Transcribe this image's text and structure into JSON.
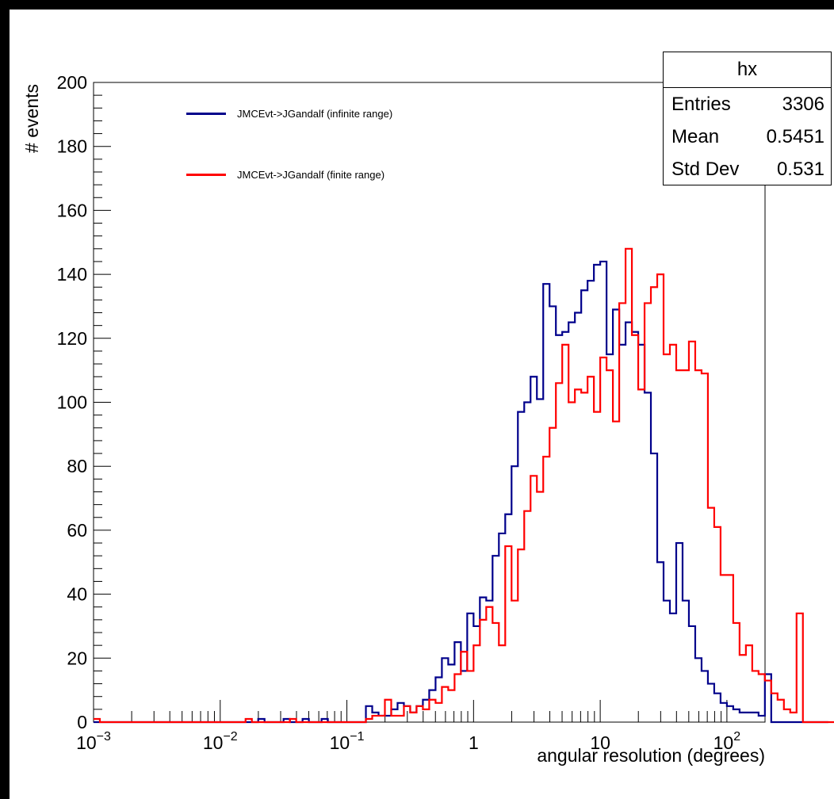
{
  "chart_data": {
    "type": "histogram",
    "xlabel": "angular resolution (degrees)",
    "ylabel": "# events",
    "xscale": "log",
    "xlim": [
      0.001,
      200
    ],
    "ylim": [
      0,
      200
    ],
    "yticks": [
      0,
      20,
      40,
      60,
      80,
      100,
      120,
      140,
      160,
      180,
      200
    ],
    "xtick_labels": [
      {
        "base": "10",
        "exp": "−3",
        "value": 0.001
      },
      {
        "base": "10",
        "exp": "−2",
        "value": 0.01
      },
      {
        "base": "10",
        "exp": "−1",
        "value": 0.1
      },
      {
        "base": "1",
        "exp": "",
        "value": 1
      },
      {
        "base": "10",
        "exp": "",
        "value": 10
      },
      {
        "base": "10",
        "exp": "2",
        "value": 100
      }
    ],
    "bin_log10_start": -3.0,
    "bin_log10_width": 0.05,
    "series": [
      {
        "name": "JMCEvt->JGandalf (infinite range)",
        "color": "#00008b",
        "counts": [
          0,
          0,
          0,
          0,
          0,
          0,
          0,
          0,
          0,
          0,
          0,
          0,
          0,
          0,
          0,
          0,
          0,
          0,
          0,
          0,
          0,
          0,
          0,
          0,
          0,
          0,
          1,
          0,
          0,
          0,
          1,
          0,
          0,
          1,
          0,
          0,
          1,
          0,
          0,
          0,
          0,
          0,
          0,
          5,
          3,
          2,
          2,
          4,
          6,
          5,
          3,
          5,
          7,
          10,
          14,
          20,
          18,
          25,
          16,
          34,
          30,
          39,
          38,
          52,
          59,
          65,
          80,
          97,
          100,
          108,
          101,
          137,
          130,
          121,
          122,
          125,
          128,
          135,
          138,
          143,
          144,
          115,
          129,
          118,
          125,
          122,
          118,
          103,
          84,
          50,
          38,
          34,
          56,
          38,
          30,
          20,
          16,
          12,
          9,
          6,
          5,
          4,
          3,
          3,
          3,
          2,
          15,
          0,
          0,
          0,
          0,
          0,
          0,
          0,
          0,
          0
        ],
        "legend": "JMCEvt->JGandalf (infinite range)"
      },
      {
        "name": "JMCEvt->JGandalf (finite range)",
        "color": "#ff0000",
        "counts": [
          1,
          0,
          0,
          0,
          0,
          0,
          0,
          0,
          0,
          0,
          0,
          0,
          0,
          0,
          0,
          0,
          0,
          0,
          0,
          0,
          0,
          0,
          0,
          0,
          1,
          0,
          0,
          0,
          0,
          0,
          0,
          1,
          0,
          0,
          0,
          0,
          0,
          0,
          0,
          0,
          0,
          0,
          0,
          1,
          2,
          2,
          7,
          2,
          2,
          5,
          3,
          5,
          4,
          7,
          6,
          11,
          10,
          15,
          22,
          16,
          24,
          32,
          36,
          31,
          24,
          55,
          38,
          54,
          66,
          77,
          72,
          83,
          92,
          106,
          118,
          100,
          104,
          103,
          108,
          97,
          114,
          110,
          94,
          131,
          148,
          121,
          104,
          131,
          136,
          140,
          115,
          118,
          110,
          110,
          119,
          110,
          109,
          67,
          61,
          46,
          46,
          31,
          21,
          24,
          16,
          15,
          13,
          9,
          7,
          4,
          3,
          34,
          0,
          0,
          0,
          0,
          0,
          0,
          0,
          0
        ],
        "legend": "JMCEvt->JGandalf (finite range)"
      }
    ]
  },
  "stats_box": {
    "title": "hx",
    "rows": [
      {
        "label": "Entries",
        "value": "3306"
      },
      {
        "label": "Mean",
        "value": "0.5451"
      },
      {
        "label": "Std Dev",
        "value": "0.531"
      }
    ]
  },
  "legend": {
    "entries": [
      {
        "label": "JMCEvt->JGandalf (infinite range)",
        "color": "#00008b"
      },
      {
        "label": "JMCEvt->JGandalf (finite range)",
        "color": "#ff0000"
      }
    ]
  }
}
